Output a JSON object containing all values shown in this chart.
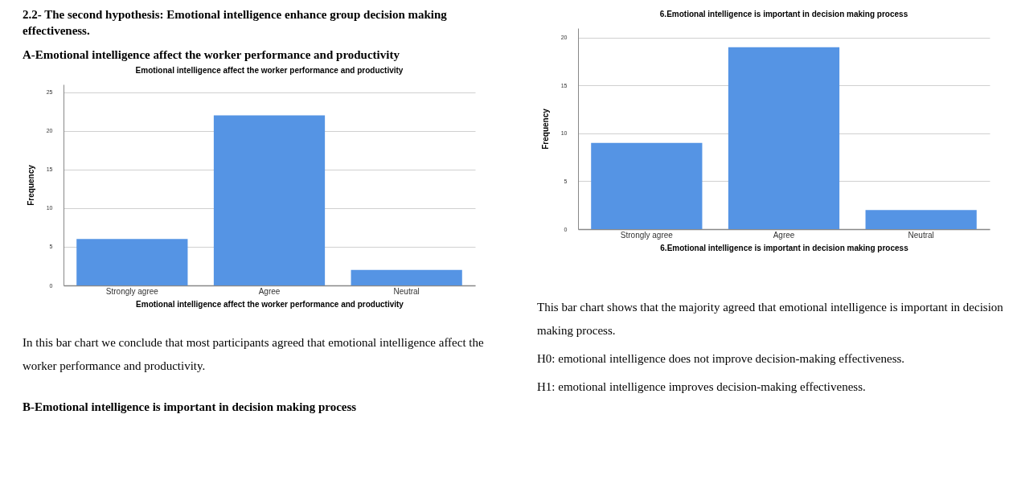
{
  "chart_data": [
    {
      "type": "bar",
      "title": "Emotional intelligence affect the worker performance and productivity",
      "xlabel": "Emotional intelligence affect the worker performance and productivity",
      "ylabel": "Frequency",
      "categories": [
        "Strongly agree",
        "Agree",
        "Neutral"
      ],
      "values": [
        6,
        22,
        2
      ],
      "color": "#5594e4",
      "ylim": [
        0,
        26
      ],
      "yticks": [
        0,
        5,
        10,
        15,
        20,
        25
      ],
      "grid": "y",
      "annotations": [
        "2.2- The second hypothesis: Emotional intelligence enhance group decision making effectiveness.",
        "A-Emotional intelligence affect the worker performance and productivity",
        "In this bar chart we conclude that most participants agreed that emotional intelligence affect the worker performance and productivity.",
        "B-Emotional intelligence is important in decision making process"
      ]
    },
    {
      "type": "bar",
      "title": "6.Emotional intelligence is important in decision making process",
      "xlabel": "6.Emotional intelligence is important in decision making process",
      "ylabel": "Frequency",
      "categories": [
        "Strongly agree",
        "Agree",
        "Neutral"
      ],
      "values": [
        9,
        19,
        2
      ],
      "color": "#5594e4",
      "ylim": [
        0,
        21
      ],
      "yticks": [
        0,
        5,
        10,
        15,
        20
      ],
      "grid": "y",
      "annotations": [
        "This bar chart shows that the majority agreed that emotional intelligence is important in decision making process.",
        "H0: emotional intelligence does not improve decision-making effectiveness.",
        "H1: emotional intelligence improves decision-making effectiveness."
      ]
    }
  ]
}
